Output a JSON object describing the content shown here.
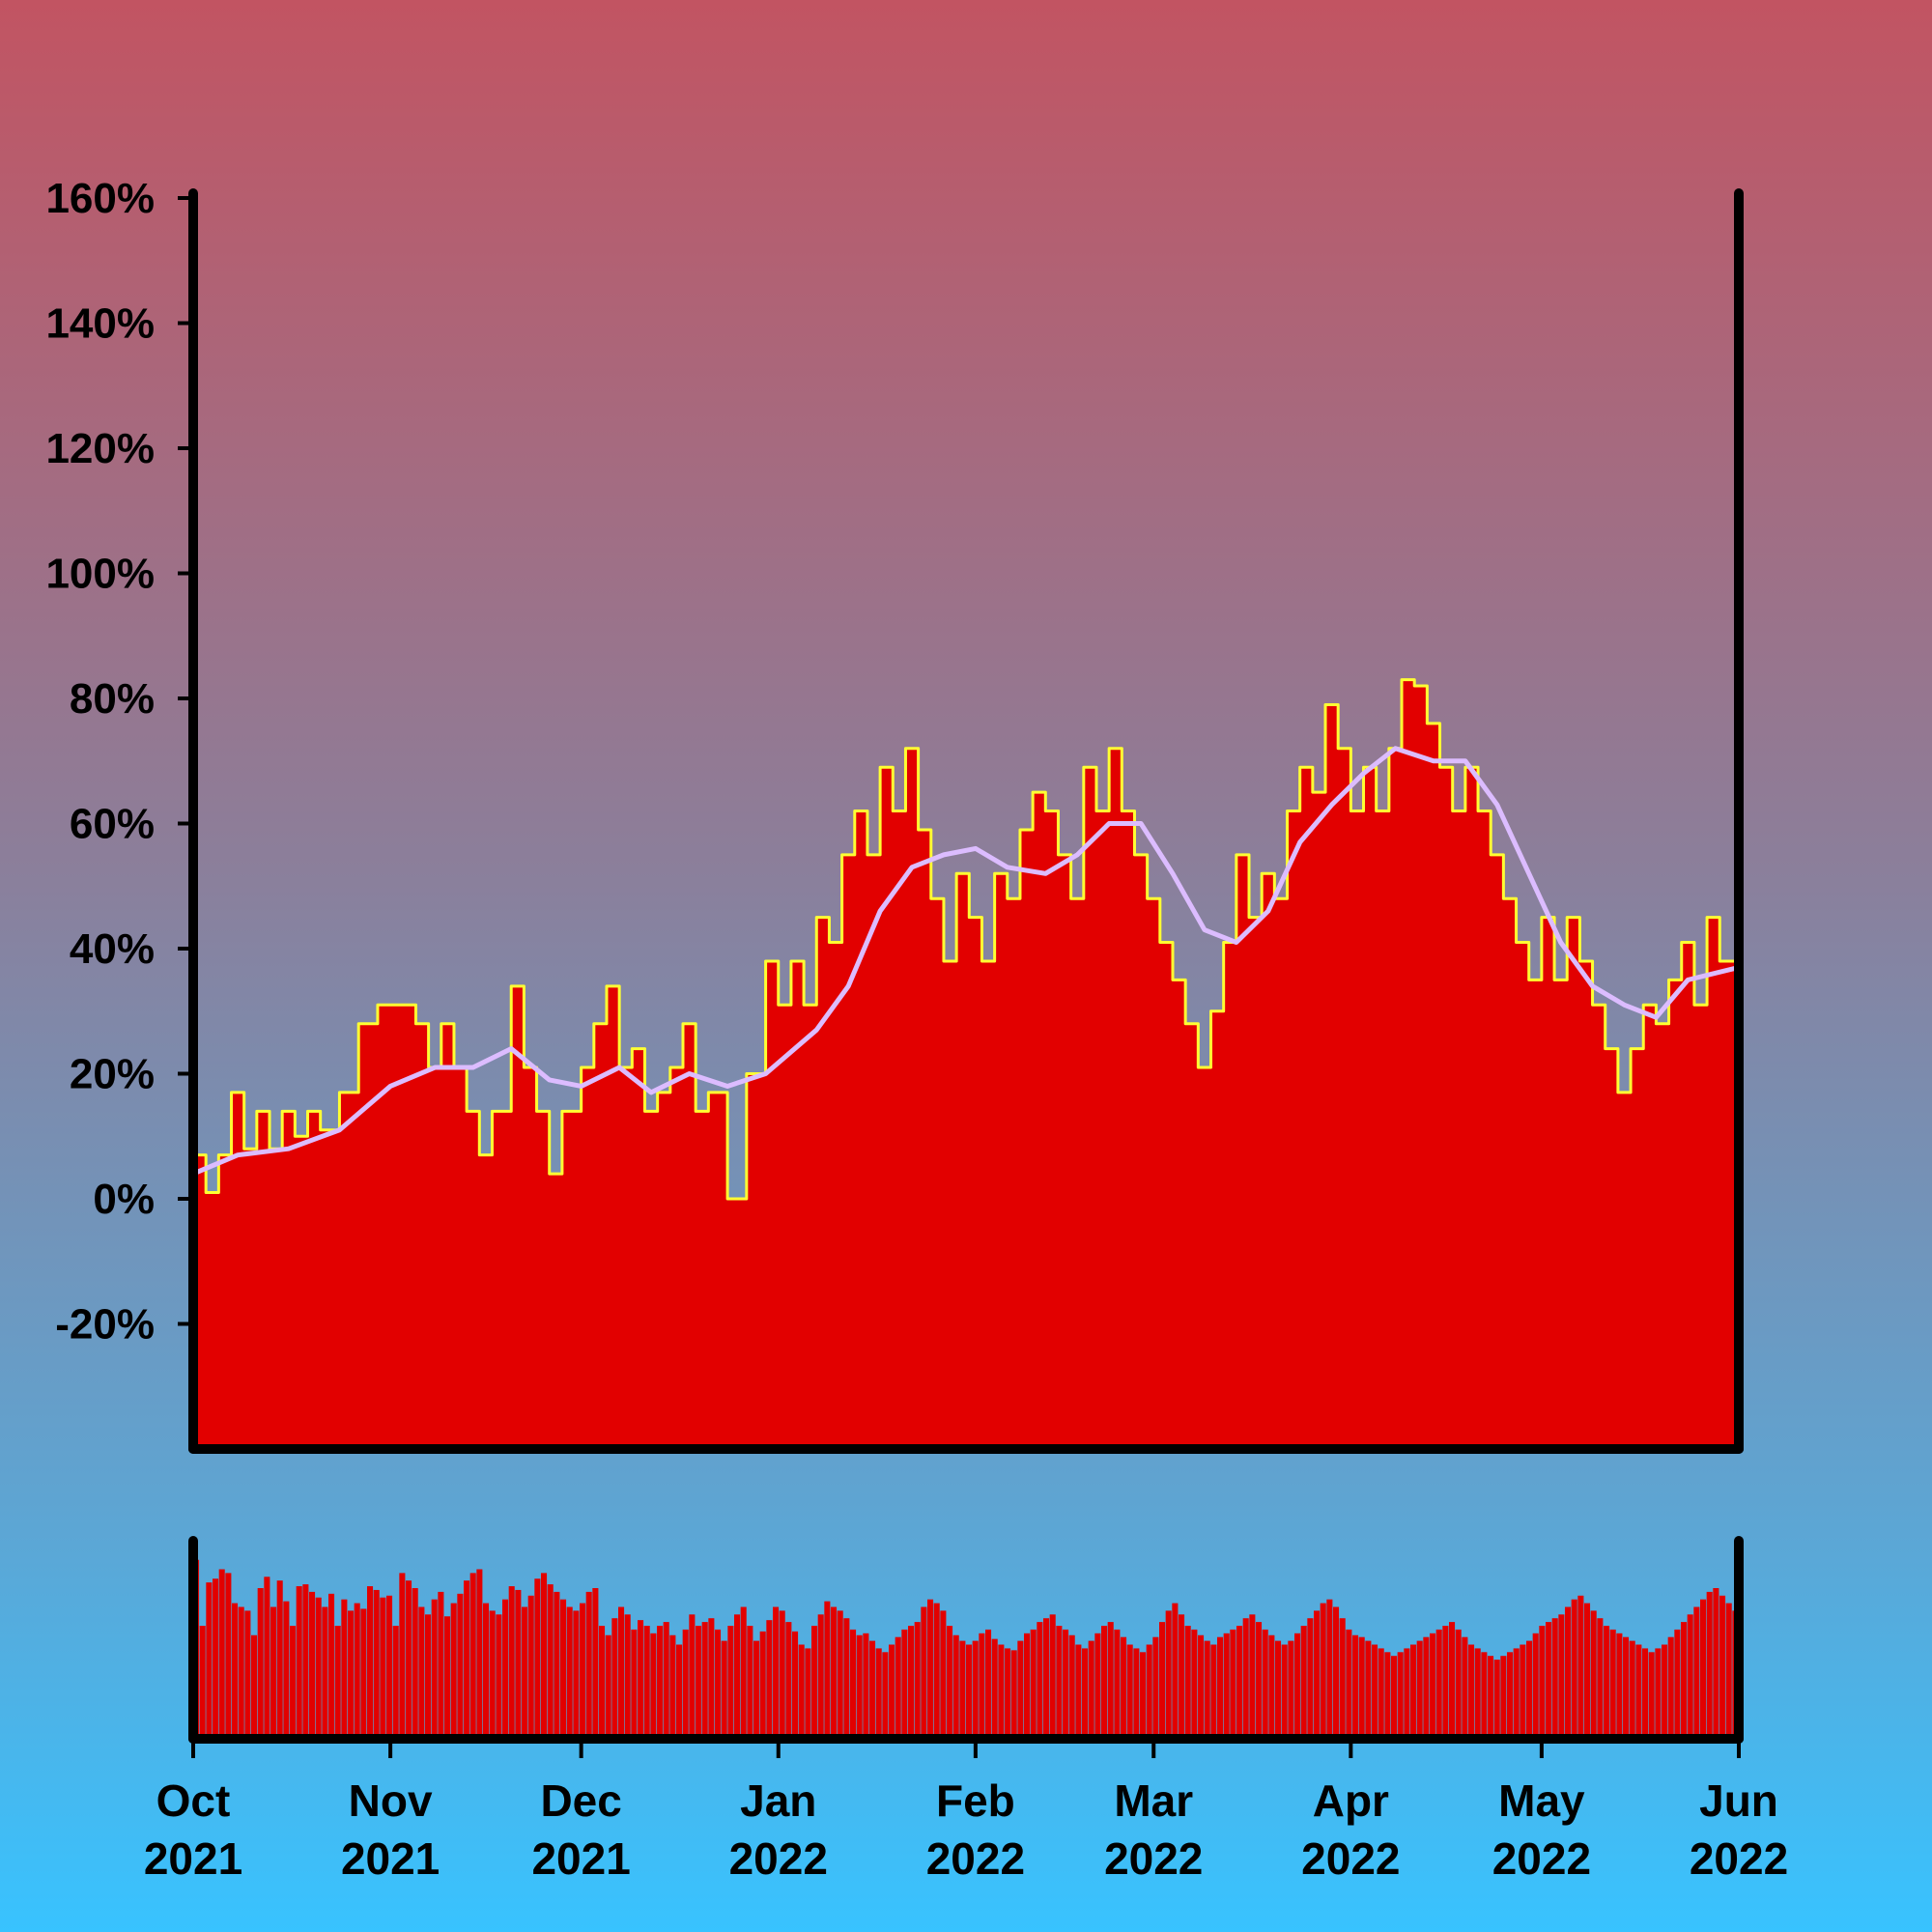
{
  "chart_data": [
    {
      "type": "area",
      "title": "",
      "xlabel": "",
      "ylabel": "",
      "ylim": [
        -40,
        160
      ],
      "y_ticks": [
        "-20%",
        "0%",
        "20%",
        "40%",
        "60%",
        "80%",
        "100%",
        "120%",
        "140%",
        "160%"
      ],
      "y_tick_values": [
        -20,
        0,
        20,
        40,
        60,
        80,
        100,
        120,
        140,
        160
      ],
      "x_start": "2021-10-01",
      "x_end": "2022-06-01",
      "x_ticks": [
        {
          "date": "2021-10-01",
          "month": "Oct",
          "year": "2021"
        },
        {
          "date": "2021-11-01",
          "month": "Nov",
          "year": "2021"
        },
        {
          "date": "2021-12-01",
          "month": "Dec",
          "year": "2021"
        },
        {
          "date": "2022-01-01",
          "month": "Jan",
          "year": "2022"
        },
        {
          "date": "2022-02-01",
          "month": "Feb",
          "year": "2022"
        },
        {
          "date": "2022-03-01",
          "month": "Mar",
          "year": "2022"
        },
        {
          "date": "2022-04-01",
          "month": "Apr",
          "year": "2022"
        },
        {
          "date": "2022-05-01",
          "month": "May",
          "year": "2022"
        },
        {
          "date": "2022-06-01",
          "month": "Jun",
          "year": "2022"
        }
      ],
      "series": [
        {
          "role": "daily value",
          "style": "step area with yellow outline",
          "points": [
            [
              "2021-10-01",
              7
            ],
            [
              "2021-10-03",
              1
            ],
            [
              "2021-10-05",
              7
            ],
            [
              "2021-10-07",
              17
            ],
            [
              "2021-10-09",
              8
            ],
            [
              "2021-10-11",
              14
            ],
            [
              "2021-10-13",
              8
            ],
            [
              "2021-10-15",
              14
            ],
            [
              "2021-10-17",
              10
            ],
            [
              "2021-10-19",
              14
            ],
            [
              "2021-10-21",
              11
            ],
            [
              "2021-10-24",
              17
            ],
            [
              "2021-10-27",
              28
            ],
            [
              "2021-10-30",
              31
            ],
            [
              "2021-11-02",
              31
            ],
            [
              "2021-11-05",
              28
            ],
            [
              "2021-11-07",
              21
            ],
            [
              "2021-11-09",
              28
            ],
            [
              "2021-11-11",
              21
            ],
            [
              "2021-11-13",
              14
            ],
            [
              "2021-11-15",
              7
            ],
            [
              "2021-11-17",
              14
            ],
            [
              "2021-11-20",
              34
            ],
            [
              "2021-11-22",
              21
            ],
            [
              "2021-11-24",
              14
            ],
            [
              "2021-11-26",
              4
            ],
            [
              "2021-11-28",
              14
            ],
            [
              "2021-12-01",
              21
            ],
            [
              "2021-12-03",
              28
            ],
            [
              "2021-12-05",
              34
            ],
            [
              "2021-12-07",
              21
            ],
            [
              "2021-12-09",
              24
            ],
            [
              "2021-12-11",
              14
            ],
            [
              "2021-12-13",
              17
            ],
            [
              "2021-12-15",
              21
            ],
            [
              "2021-12-17",
              28
            ],
            [
              "2021-12-19",
              14
            ],
            [
              "2021-12-21",
              17
            ],
            [
              "2021-12-24",
              0
            ],
            [
              "2021-12-27",
              20
            ],
            [
              "2021-12-30",
              38
            ],
            [
              "2022-01-01",
              31
            ],
            [
              "2022-01-03",
              38
            ],
            [
              "2022-01-05",
              31
            ],
            [
              "2022-01-07",
              45
            ],
            [
              "2022-01-09",
              41
            ],
            [
              "2022-01-11",
              55
            ],
            [
              "2022-01-13",
              62
            ],
            [
              "2022-01-15",
              55
            ],
            [
              "2022-01-17",
              69
            ],
            [
              "2022-01-19",
              62
            ],
            [
              "2022-01-21",
              72
            ],
            [
              "2022-01-23",
              59
            ],
            [
              "2022-01-25",
              48
            ],
            [
              "2022-01-27",
              38
            ],
            [
              "2022-01-29",
              52
            ],
            [
              "2022-01-31",
              45
            ],
            [
              "2022-02-02",
              38
            ],
            [
              "2022-02-04",
              52
            ],
            [
              "2022-02-06",
              48
            ],
            [
              "2022-02-08",
              59
            ],
            [
              "2022-02-10",
              65
            ],
            [
              "2022-02-12",
              62
            ],
            [
              "2022-02-14",
              55
            ],
            [
              "2022-02-16",
              48
            ],
            [
              "2022-02-18",
              69
            ],
            [
              "2022-02-20",
              62
            ],
            [
              "2022-02-22",
              72
            ],
            [
              "2022-02-24",
              62
            ],
            [
              "2022-02-26",
              55
            ],
            [
              "2022-02-28",
              48
            ],
            [
              "2022-03-02",
              41
            ],
            [
              "2022-03-04",
              35
            ],
            [
              "2022-03-06",
              28
            ],
            [
              "2022-03-08",
              21
            ],
            [
              "2022-03-10",
              30
            ],
            [
              "2022-03-12",
              41
            ],
            [
              "2022-03-14",
              55
            ],
            [
              "2022-03-16",
              45
            ],
            [
              "2022-03-18",
              52
            ],
            [
              "2022-03-20",
              48
            ],
            [
              "2022-03-22",
              62
            ],
            [
              "2022-03-24",
              69
            ],
            [
              "2022-03-26",
              65
            ],
            [
              "2022-03-28",
              79
            ],
            [
              "2022-03-30",
              72
            ],
            [
              "2022-04-01",
              62
            ],
            [
              "2022-04-03",
              69
            ],
            [
              "2022-04-05",
              62
            ],
            [
              "2022-04-07",
              72
            ],
            [
              "2022-04-09",
              83
            ],
            [
              "2022-04-11",
              82
            ],
            [
              "2022-04-13",
              76
            ],
            [
              "2022-04-15",
              69
            ],
            [
              "2022-04-17",
              62
            ],
            [
              "2022-04-19",
              69
            ],
            [
              "2022-04-21",
              62
            ],
            [
              "2022-04-23",
              55
            ],
            [
              "2022-04-25",
              48
            ],
            [
              "2022-04-27",
              41
            ],
            [
              "2022-04-29",
              35
            ],
            [
              "2022-05-01",
              45
            ],
            [
              "2022-05-03",
              35
            ],
            [
              "2022-05-05",
              45
            ],
            [
              "2022-05-07",
              38
            ],
            [
              "2022-05-09",
              31
            ],
            [
              "2022-05-11",
              24
            ],
            [
              "2022-05-13",
              17
            ],
            [
              "2022-05-15",
              24
            ],
            [
              "2022-05-17",
              31
            ],
            [
              "2022-05-19",
              28
            ],
            [
              "2022-05-21",
              35
            ],
            [
              "2022-05-23",
              41
            ],
            [
              "2022-05-25",
              31
            ],
            [
              "2022-05-27",
              45
            ],
            [
              "2022-05-29",
              38
            ],
            [
              "2022-06-01",
              17
            ]
          ]
        },
        {
          "role": "moving average",
          "style": "light purple line",
          "color": "#dcbcff",
          "points": [
            [
              "2021-10-01",
              4
            ],
            [
              "2021-10-08",
              7
            ],
            [
              "2021-10-16",
              8
            ],
            [
              "2021-10-24",
              11
            ],
            [
              "2021-11-01",
              18
            ],
            [
              "2021-11-08",
              21
            ],
            [
              "2021-11-14",
              21
            ],
            [
              "2021-11-20",
              24
            ],
            [
              "2021-11-26",
              19
            ],
            [
              "2021-12-01",
              18
            ],
            [
              "2021-12-07",
              21
            ],
            [
              "2021-12-12",
              17
            ],
            [
              "2021-12-18",
              20
            ],
            [
              "2021-12-24",
              18
            ],
            [
              "2021-12-30",
              20
            ],
            [
              "2022-01-07",
              27
            ],
            [
              "2022-01-12",
              34
            ],
            [
              "2022-01-17",
              46
            ],
            [
              "2022-01-22",
              53
            ],
            [
              "2022-01-27",
              55
            ],
            [
              "2022-02-01",
              56
            ],
            [
              "2022-02-06",
              53
            ],
            [
              "2022-02-12",
              52
            ],
            [
              "2022-02-17",
              55
            ],
            [
              "2022-02-22",
              60
            ],
            [
              "2022-02-27",
              60
            ],
            [
              "2022-03-04",
              52
            ],
            [
              "2022-03-09",
              43
            ],
            [
              "2022-03-14",
              41
            ],
            [
              "2022-03-19",
              46
            ],
            [
              "2022-03-24",
              57
            ],
            [
              "2022-03-29",
              63
            ],
            [
              "2022-04-03",
              68
            ],
            [
              "2022-04-08",
              72
            ],
            [
              "2022-04-14",
              70
            ],
            [
              "2022-04-19",
              70
            ],
            [
              "2022-04-24",
              63
            ],
            [
              "2022-04-29",
              52
            ],
            [
              "2022-05-04",
              41
            ],
            [
              "2022-05-09",
              34
            ],
            [
              "2022-05-14",
              31
            ],
            [
              "2022-05-19",
              29
            ],
            [
              "2022-05-24",
              35
            ],
            [
              "2022-06-01",
              37
            ]
          ]
        }
      ]
    },
    {
      "type": "bar",
      "title": "",
      "xlabel": "",
      "ylabel": "",
      "role": "volume panel (no y axis labels)",
      "x_start": "2021-10-01",
      "x_end": "2022-06-01",
      "values": [
        95,
        60,
        83,
        85,
        90,
        88,
        72,
        70,
        68,
        55,
        80,
        86,
        70,
        84,
        73,
        60,
        81,
        82,
        78,
        75,
        70,
        77,
        60,
        74,
        68,
        72,
        69,
        81,
        79,
        75,
        76,
        60,
        88,
        84,
        80,
        70,
        66,
        74,
        78,
        65,
        72,
        77,
        84,
        88,
        90,
        72,
        68,
        66,
        74,
        81,
        79,
        70,
        76,
        85,
        88,
        82,
        78,
        74,
        70,
        68,
        72,
        78,
        80,
        60,
        55,
        64,
        70,
        66,
        58,
        63,
        60,
        56,
        60,
        62,
        55,
        50,
        58,
        66,
        60,
        62,
        64,
        58,
        52,
        60,
        66,
        70,
        60,
        52,
        57,
        63,
        70,
        68,
        62,
        57,
        50,
        48,
        60,
        66,
        73,
        70,
        68,
        64,
        58,
        55,
        56,
        52,
        48,
        46,
        50,
        54,
        58,
        60,
        62,
        70,
        74,
        72,
        68,
        60,
        55,
        52,
        50,
        52,
        56,
        58,
        53,
        50,
        48,
        47,
        52,
        56,
        58,
        62,
        64,
        66,
        60,
        58,
        55,
        50,
        48,
        52,
        56,
        60,
        62,
        58,
        54,
        50,
        48,
        46,
        50,
        54,
        62,
        68,
        72,
        66,
        60,
        58,
        55,
        52,
        50,
        54,
        56,
        58,
        60,
        64,
        66,
        62,
        58,
        55,
        52,
        50,
        52,
        56,
        60,
        64,
        68,
        72,
        74,
        70,
        64,
        58,
        55,
        54,
        52,
        50,
        48,
        46,
        44,
        46,
        48,
        50,
        52,
        54,
        56,
        58,
        60,
        62,
        58,
        54,
        50,
        48,
        46,
        44,
        42,
        44,
        46,
        48,
        50,
        52,
        56,
        60,
        62,
        64,
        66,
        70,
        74,
        76,
        72,
        68,
        64,
        60,
        58,
        56,
        54,
        52,
        50,
        48,
        46,
        48,
        50,
        54,
        58,
        62,
        66,
        70,
        74,
        78,
        80,
        76,
        72,
        68
      ]
    }
  ],
  "colors": {
    "area_fill": "#e20000",
    "area_outline": "#ffff33",
    "moving_average": "#dcbcff",
    "axis": "#000000",
    "bar_fill": "#e20000"
  }
}
